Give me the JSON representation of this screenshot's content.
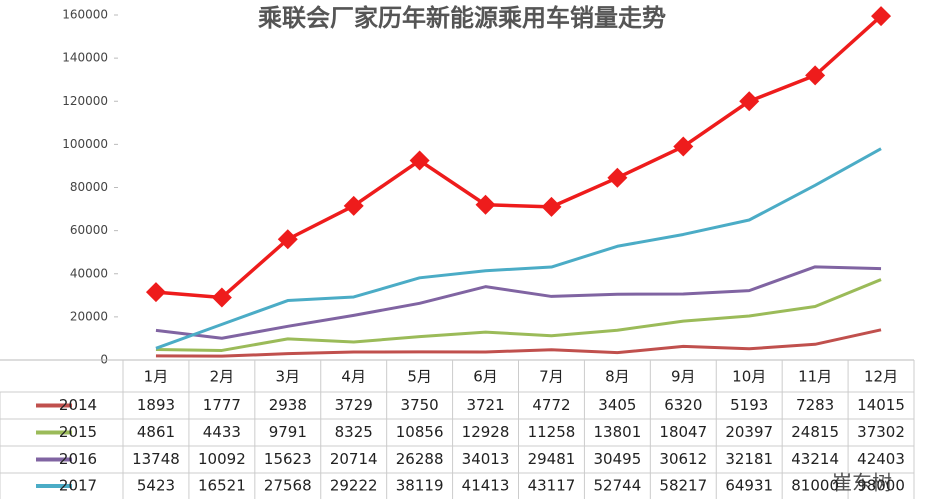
{
  "chart_data": {
    "type": "line",
    "title": "乘联会厂家历年新能源乘用车销量走势",
    "categories": [
      "1月",
      "2月",
      "3月",
      "4月",
      "5月",
      "6月",
      "7月",
      "8月",
      "9月",
      "10月",
      "11月",
      "12月"
    ],
    "ylim": [
      0,
      160000
    ],
    "yticks": [
      0,
      20000,
      40000,
      60000,
      80000,
      100000,
      120000,
      140000,
      160000
    ],
    "grid": false,
    "watermark": "崔东树",
    "series": [
      {
        "name": "2014",
        "color": "#c0504d",
        "values": [
          1893,
          1777,
          2938,
          3729,
          3750,
          3721,
          4772,
          3405,
          6320,
          5193,
          7283,
          14015
        ]
      },
      {
        "name": "2015",
        "color": "#9bbb59",
        "values": [
          4861,
          4433,
          9791,
          8325,
          10856,
          12928,
          11258,
          13801,
          18047,
          20397,
          24815,
          37302
        ]
      },
      {
        "name": "2016",
        "color": "#8064a2",
        "values": [
          13748,
          10092,
          15623,
          20714,
          26288,
          34013,
          29481,
          30495,
          30612,
          32181,
          43214,
          42403
        ]
      },
      {
        "name": "2017",
        "color": "#4bacc6",
        "values": [
          5423,
          16521,
          27568,
          29222,
          38119,
          41413,
          43117,
          52744,
          58217,
          64931,
          81000,
          98000
        ]
      },
      {
        "color": "#ee1c1c",
        "marker": "diamond",
        "values": [
          31500,
          29000,
          56000,
          71500,
          92500,
          72000,
          71000,
          84500,
          99000,
          120000,
          132000,
          159500
        ]
      }
    ]
  }
}
